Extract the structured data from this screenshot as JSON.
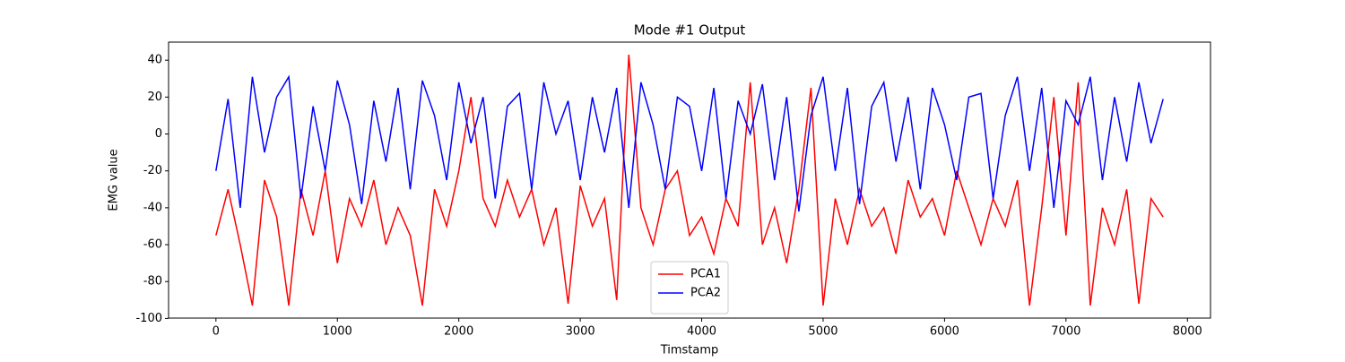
{
  "chart_data": {
    "type": "line",
    "title": "Mode #1 Output",
    "xlabel": "Timstamp",
    "ylabel": "EMG value",
    "x": [
      0,
      100,
      200,
      300,
      400,
      500,
      600,
      700,
      800,
      900,
      1000,
      1100,
      1200,
      1300,
      1400,
      1500,
      1600,
      1700,
      1800,
      1900,
      2000,
      2100,
      2200,
      2300,
      2400,
      2500,
      2600,
      2700,
      2800,
      2900,
      3000,
      3100,
      3200,
      3300,
      3400,
      3500,
      3600,
      3700,
      3800,
      3900,
      4000,
      4100,
      4200,
      4300,
      4400,
      4500,
      4600,
      4700,
      4800,
      4900,
      5000,
      5100,
      5200,
      5300,
      5400,
      5500,
      5600,
      5700,
      5800,
      5900,
      6000,
      6100,
      6200,
      6300,
      6400,
      6500,
      6600,
      6700,
      6800,
      6900,
      7000,
      7100,
      7200,
      7300,
      7400,
      7500,
      7600,
      7700,
      7800
    ],
    "series": [
      {
        "name": "PCA1",
        "color": "#ff0000",
        "values": [
          -55,
          -30,
          -60,
          -93,
          -25,
          -45,
          -93,
          -30,
          -55,
          -20,
          -70,
          -35,
          -50,
          -25,
          -60,
          -40,
          -55,
          -93,
          -30,
          -50,
          -20,
          20,
          -35,
          -50,
          -25,
          -45,
          -30,
          -60,
          -40,
          -92,
          -28,
          -50,
          -35,
          -90,
          43,
          -40,
          -60,
          -30,
          -20,
          -55,
          -45,
          -65,
          -35,
          -50,
          28,
          -60,
          -40,
          -70,
          -30,
          25,
          -93,
          -35,
          -60,
          -30,
          -50,
          -40,
          -65,
          -25,
          -45,
          -35,
          -55,
          -20,
          -40,
          -60,
          -35,
          -50,
          -25,
          -93,
          -40,
          20,
          -55,
          28,
          -93,
          -40,
          -60,
          -30,
          -92,
          -35,
          -45
        ]
      },
      {
        "name": "PCA2",
        "color": "#0000ff",
        "values": [
          -20,
          19,
          -40,
          31,
          -10,
          20,
          31,
          -35,
          15,
          -20,
          29,
          5,
          -38,
          18,
          -15,
          25,
          -30,
          29,
          10,
          -25,
          28,
          -5,
          20,
          -35,
          15,
          22,
          -30,
          28,
          0,
          18,
          -25,
          20,
          -10,
          25,
          -40,
          28,
          5,
          -30,
          20,
          15,
          -20,
          25,
          -35,
          18,
          0,
          27,
          -25,
          20,
          -42,
          10,
          31,
          -20,
          25,
          -38,
          15,
          28,
          -15,
          20,
          -30,
          25,
          5,
          -25,
          20,
          22,
          -35,
          10,
          31,
          -20,
          25,
          -40,
          18,
          5,
          31,
          -25,
          20,
          -15,
          28,
          -5,
          19
        ]
      }
    ],
    "xlim": [
      -390,
      8190
    ],
    "xticks": [
      0,
      1000,
      2000,
      3000,
      4000,
      5000,
      6000,
      7000,
      8000
    ],
    "ylim": [
      -99.8,
      49.8
    ],
    "yticks": [
      -100,
      -80,
      -60,
      -40,
      -20,
      0,
      20,
      40
    ],
    "legend": "lower center"
  }
}
